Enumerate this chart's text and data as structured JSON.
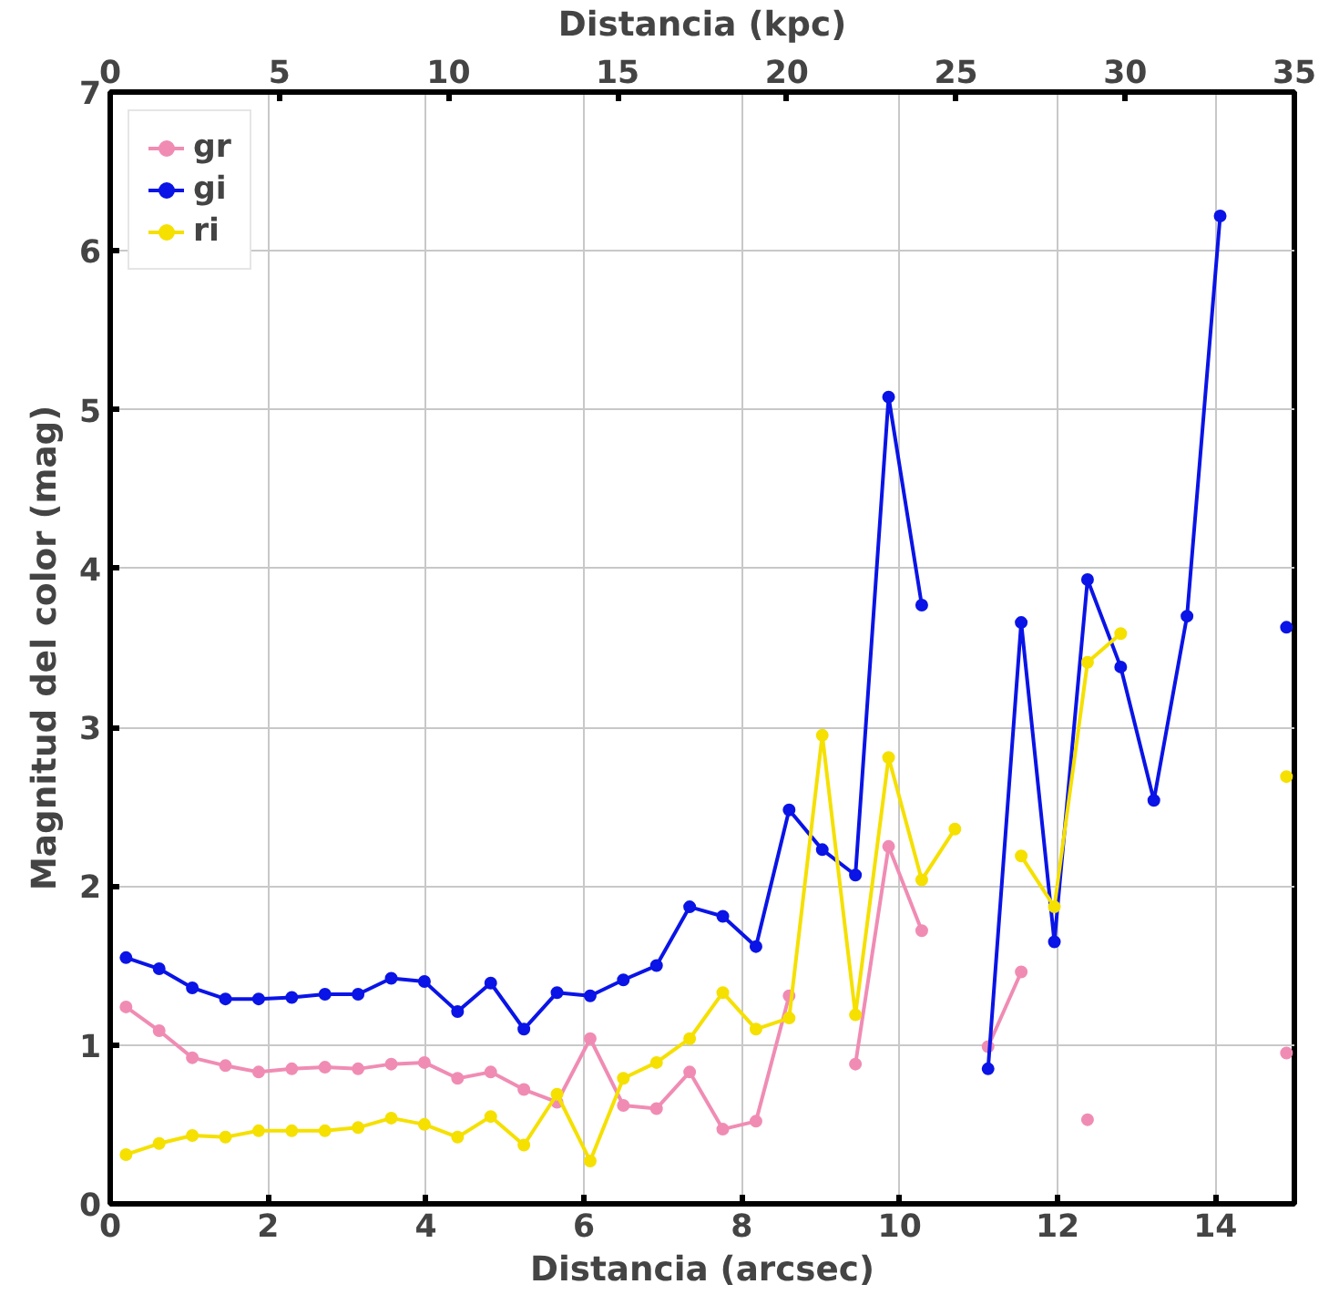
{
  "chart_data": {
    "type": "line",
    "xlabel": "Distancia (arcsec)",
    "ylabel": "Magnitud del color (mag)",
    "x2label": "Distancia (kpc)",
    "x": [
      0.2,
      0.62,
      1.04,
      1.46,
      1.88,
      2.3,
      2.72,
      3.14,
      3.56,
      3.98,
      4.4,
      4.82,
      5.24,
      5.66,
      6.08,
      6.5,
      6.92,
      7.34,
      7.76,
      8.18,
      8.6,
      9.02,
      9.44,
      9.86,
      10.28,
      10.7,
      11.12,
      11.54,
      11.96,
      12.38,
      12.8,
      13.22,
      13.64,
      14.06,
      14.48,
      14.9
    ],
    "series": [
      {
        "name": "gr",
        "color": "#f08cb4",
        "values": [
          1.24,
          1.09,
          0.92,
          0.87,
          0.83,
          0.85,
          0.86,
          0.85,
          0.88,
          0.89,
          0.79,
          0.83,
          0.72,
          0.64,
          1.04,
          0.62,
          0.6,
          0.83,
          0.47,
          0.52,
          1.31,
          null,
          0.88,
          2.25,
          1.72,
          null,
          0.99,
          1.46,
          null,
          0.53,
          null,
          null,
          null,
          null,
          null,
          0.95
        ]
      },
      {
        "name": "gi",
        "color": "#0a14e6",
        "values": [
          1.55,
          1.48,
          1.36,
          1.29,
          1.29,
          1.3,
          1.32,
          1.32,
          1.42,
          1.4,
          1.21,
          1.39,
          1.1,
          1.33,
          1.31,
          1.41,
          1.5,
          1.87,
          1.81,
          1.62,
          2.48,
          2.23,
          2.07,
          5.08,
          3.77,
          null,
          0.85,
          3.66,
          1.65,
          3.93,
          3.38,
          2.54,
          3.7,
          6.22,
          null,
          3.63
        ]
      },
      {
        "name": "ri",
        "color": "#f5e000",
        "values": [
          0.31,
          0.38,
          0.43,
          0.42,
          0.46,
          0.46,
          0.46,
          0.48,
          0.54,
          0.5,
          0.42,
          0.55,
          0.37,
          0.69,
          0.27,
          0.79,
          0.89,
          1.04,
          1.33,
          1.1,
          1.17,
          2.95,
          1.19,
          2.81,
          2.04,
          2.36,
          null,
          2.19,
          1.87,
          3.41,
          3.59,
          null,
          null,
          null,
          null,
          2.69
        ]
      }
    ],
    "xlim": [
      0,
      15
    ],
    "xticks": [
      0,
      2,
      4,
      6,
      8,
      10,
      12,
      14
    ],
    "ylim": [
      0,
      7
    ],
    "yticks": [
      0,
      1,
      2,
      3,
      4,
      5,
      6,
      7
    ],
    "x2lim": [
      0,
      35
    ],
    "x2ticks": [
      0,
      5,
      10,
      15,
      20,
      25,
      30,
      35
    ],
    "grid": true,
    "legend": "top left",
    "marker": "circle",
    "line_style": "solid"
  }
}
